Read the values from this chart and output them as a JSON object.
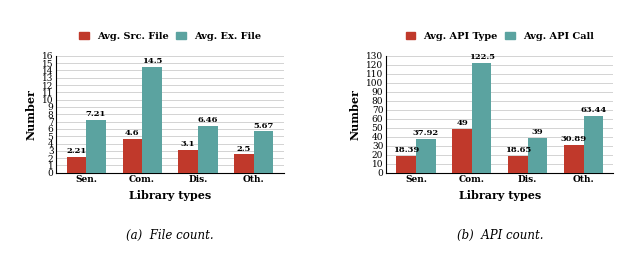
{
  "chart1": {
    "categories": [
      "Sen.",
      "Com.",
      "Dis.",
      "Oth."
    ],
    "series1_label": "Avg. Src. File",
    "series2_label": "Avg. Ex. File",
    "series1_values": [
      2.21,
      4.6,
      3.1,
      2.5
    ],
    "series2_values": [
      7.21,
      14.5,
      6.46,
      5.67
    ],
    "series1_color": "#c0392b",
    "series2_color": "#5ba3a0",
    "ylabel": "Number",
    "xlabel": "Library types",
    "ylim": [
      0,
      16
    ],
    "yticks": [
      0,
      1,
      2,
      3,
      4,
      5,
      6,
      7,
      8,
      9,
      10,
      11,
      12,
      13,
      14,
      15,
      16
    ],
    "caption": "(a)  File count."
  },
  "chart2": {
    "categories": [
      "Sen.",
      "Com.",
      "Dis.",
      "Oth."
    ],
    "series1_label": "Avg. API Type",
    "series2_label": "Avg. API Call",
    "series1_values": [
      18.39,
      49,
      18.65,
      30.89
    ],
    "series2_values": [
      37.92,
      122.5,
      39,
      63.44
    ],
    "series1_color": "#c0392b",
    "series2_color": "#5ba3a0",
    "ylabel": "Number",
    "xlabel": "Library types",
    "ylim": [
      0,
      130
    ],
    "yticks": [
      0,
      10,
      20,
      30,
      40,
      50,
      60,
      70,
      80,
      90,
      100,
      110,
      120,
      130
    ],
    "caption": "(b)  API count."
  },
  "bar_width": 0.35,
  "label_fontsize": 6.0,
  "tick_fontsize": 6.5,
  "axis_label_fontsize": 8,
  "legend_fontsize": 7,
  "caption_fontsize": 8.5
}
